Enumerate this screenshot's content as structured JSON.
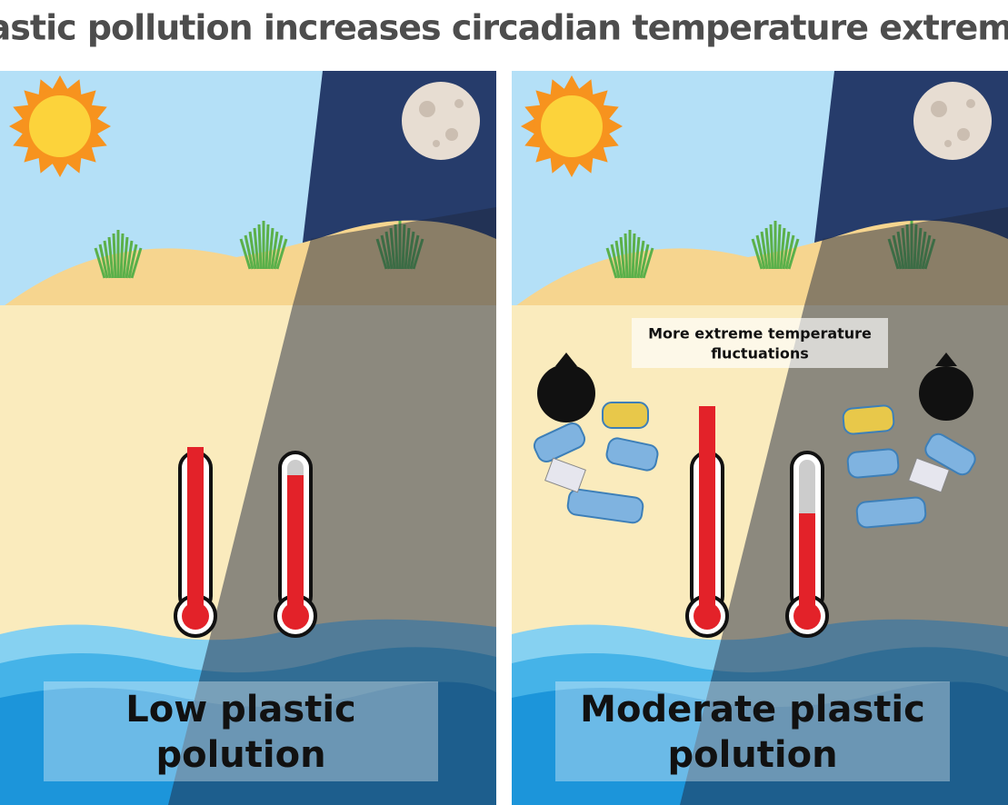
{
  "title": "Plastic pollution increases circadian temperature extremes",
  "panels": [
    {
      "label_lines": [
        "Low plastic",
        "polution"
      ]
    },
    {
      "label_lines": [
        "Moderate plastic",
        "polution"
      ],
      "annotation_lines": [
        "More extreme temperature",
        "fluctuations"
      ]
    }
  ]
}
